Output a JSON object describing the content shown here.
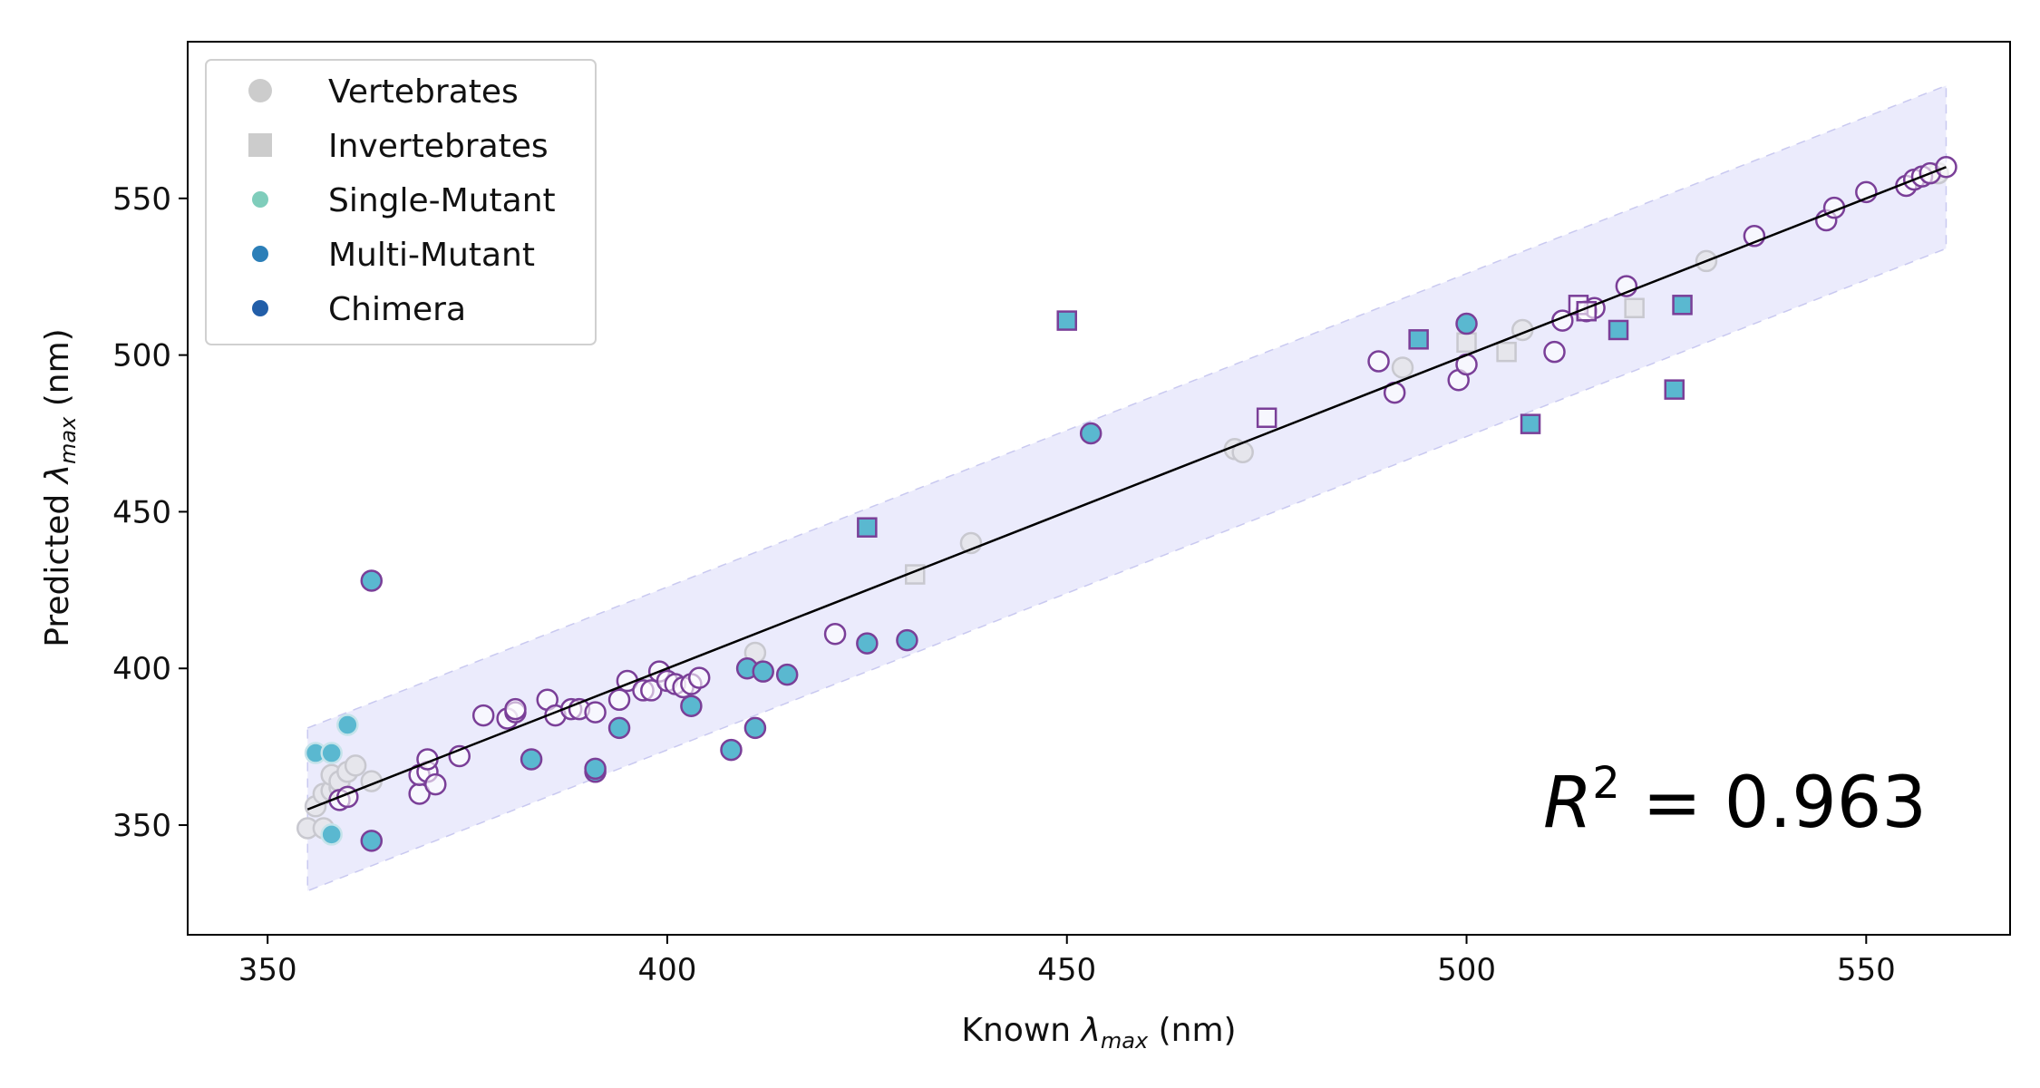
{
  "chart_data": {
    "type": "scatter",
    "title": "",
    "xlabel": {
      "prefix": "Known ",
      "symbol": "λ",
      "sub": "max",
      "suffix": " (nm)"
    },
    "ylabel": {
      "prefix": "Predicted ",
      "symbol": "λ",
      "sub": "max",
      "suffix": " (nm)"
    },
    "xlim": [
      340,
      568
    ],
    "ylim": [
      315,
      600
    ],
    "xticks": [
      350,
      400,
      450,
      500,
      550
    ],
    "yticks": [
      350,
      400,
      450,
      500,
      550
    ],
    "grid": false,
    "legend_position": "top-left",
    "legend": [
      {
        "label": "Vertebrates",
        "marker": "circle",
        "color": "#cccccc"
      },
      {
        "label": "Invertebrates",
        "marker": "square",
        "color": "#cccccc"
      },
      {
        "label": "Single-Mutant",
        "marker": "circle-small",
        "color": "#7fcdbb"
      },
      {
        "label": "Multi-Mutant",
        "marker": "circle-small",
        "color": "#2c7fb8"
      },
      {
        "label": "Chimera",
        "marker": "circle-small",
        "color": "#225ea8"
      }
    ],
    "annotation": {
      "symbol": "R",
      "sup": "2",
      "text": " = 0.963"
    },
    "fit_line": {
      "x": [
        355,
        560
      ],
      "y": [
        355,
        560
      ]
    },
    "band": {
      "x": [
        355,
        560
      ],
      "lower": [
        329,
        534
      ],
      "upper": [
        381,
        586
      ]
    },
    "colors": {
      "band_fill": "#e8e8fb",
      "band_edge": "#c9c9f0",
      "gray_fill": "#e6e6ec",
      "gray_edge": "#c8c8cf",
      "purple": "#7a3f98",
      "teal": "#5ab8d0",
      "fit": "#000000"
    },
    "series": [
      {
        "group": "gray-circle",
        "points": [
          [
            355,
            349
          ],
          [
            356,
            356
          ],
          [
            357,
            360
          ],
          [
            357,
            349
          ],
          [
            358,
            361
          ],
          [
            358,
            366
          ],
          [
            359,
            362
          ],
          [
            359,
            364
          ],
          [
            360,
            359
          ],
          [
            360,
            367
          ],
          [
            361,
            369
          ],
          [
            363,
            364
          ],
          [
            411,
            405
          ],
          [
            438,
            440
          ],
          [
            471,
            470
          ],
          [
            472,
            469
          ],
          [
            492,
            496
          ],
          [
            507,
            508
          ],
          [
            530,
            530
          ],
          [
            559,
            558
          ]
        ]
      },
      {
        "group": "gray-square",
        "points": [
          [
            431,
            430
          ],
          [
            500,
            504
          ],
          [
            505,
            501
          ],
          [
            521,
            515
          ]
        ]
      },
      {
        "group": "purple-circle",
        "points": [
          [
            359,
            358
          ],
          [
            360,
            359
          ],
          [
            369,
            360
          ],
          [
            369,
            366
          ],
          [
            370,
            367
          ],
          [
            370,
            371
          ],
          [
            371,
            363
          ],
          [
            374,
            372
          ],
          [
            377,
            385
          ],
          [
            380,
            384
          ],
          [
            381,
            386
          ],
          [
            381,
            387
          ],
          [
            385,
            390
          ],
          [
            386,
            385
          ],
          [
            388,
            387
          ],
          [
            389,
            387
          ],
          [
            391,
            386
          ],
          [
            394,
            390
          ],
          [
            395,
            396
          ],
          [
            397,
            393
          ],
          [
            398,
            393
          ],
          [
            399,
            399
          ],
          [
            400,
            396
          ],
          [
            401,
            395
          ],
          [
            402,
            394
          ],
          [
            403,
            395
          ],
          [
            404,
            397
          ],
          [
            421,
            411
          ],
          [
            489,
            498
          ],
          [
            491,
            488
          ],
          [
            499,
            492
          ],
          [
            500,
            497
          ],
          [
            511,
            501
          ],
          [
            512,
            511
          ],
          [
            515,
            514
          ],
          [
            516,
            515
          ],
          [
            520,
            522
          ],
          [
            536,
            538
          ],
          [
            545,
            543
          ],
          [
            546,
            547
          ],
          [
            550,
            552
          ],
          [
            555,
            554
          ],
          [
            556,
            556
          ],
          [
            557,
            557
          ],
          [
            558,
            558
          ],
          [
            560,
            560
          ]
        ]
      },
      {
        "group": "purple-square",
        "points": [
          [
            475,
            480
          ],
          [
            514,
            516
          ],
          [
            515,
            514
          ]
        ]
      },
      {
        "group": "teal-circle-purple-edge",
        "points": [
          [
            363,
            345
          ],
          [
            363,
            428
          ],
          [
            383,
            371
          ],
          [
            391,
            367
          ],
          [
            391,
            368
          ],
          [
            394,
            381
          ],
          [
            403,
            388
          ],
          [
            408,
            374
          ],
          [
            410,
            400
          ],
          [
            411,
            381
          ],
          [
            412,
            399
          ],
          [
            415,
            398
          ],
          [
            425,
            408
          ],
          [
            430,
            409
          ],
          [
            453,
            475
          ],
          [
            500,
            510
          ]
        ]
      },
      {
        "group": "teal-circle-light-edge",
        "points": [
          [
            356,
            373
          ],
          [
            358,
            347
          ],
          [
            358,
            373
          ],
          [
            360,
            382
          ]
        ]
      },
      {
        "group": "teal-square",
        "points": [
          [
            425,
            445
          ],
          [
            450,
            511
          ],
          [
            494,
            505
          ],
          [
            508,
            478
          ],
          [
            519,
            508
          ],
          [
            526,
            489
          ],
          [
            527,
            516
          ]
        ]
      }
    ]
  }
}
